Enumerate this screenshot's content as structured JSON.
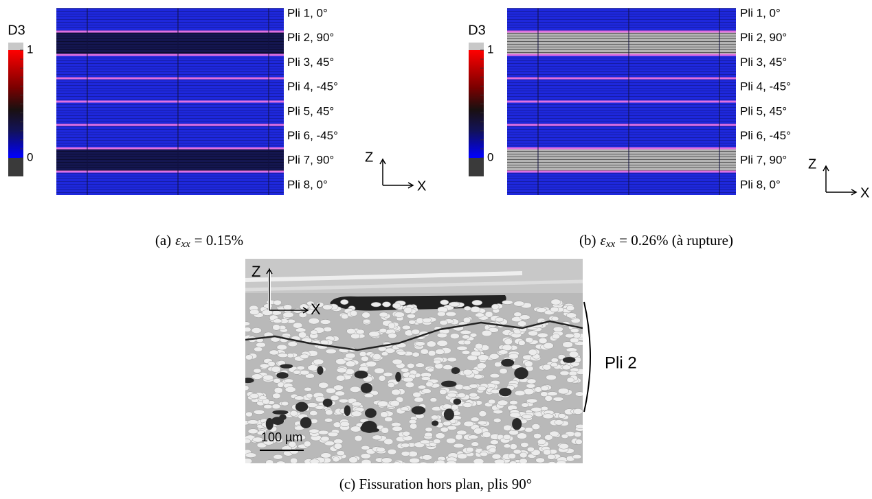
{
  "panels": [
    {
      "colorbar": {
        "label": "D3",
        "ticks": [
          "1",
          "0"
        ]
      },
      "plies": [
        "Pli 1, 0°",
        "Pli 2, 90°",
        "Pli 3, 45°",
        "Pli 4, -45°",
        "Pli 5, 45°",
        "Pli 6, -45°",
        "Pli 7, 90°",
        "Pli 8, 0°"
      ],
      "axes": {
        "z": "Z",
        "x": "X"
      },
      "caption": {
        "label": "(a)",
        "symbol": "ε",
        "subscript": "xx",
        "text": "= 0.15%"
      }
    },
    {
      "colorbar": {
        "label": "D3",
        "ticks": [
          "1",
          "0"
        ]
      },
      "plies": [
        "Pli 1, 0°",
        "Pli 2, 90°",
        "Pli 3, 45°",
        "Pli 4, -45°",
        "Pli 5, 45°",
        "Pli 6, -45°",
        "Pli 7, 90°",
        "Pli 8, 0°"
      ],
      "axes": {
        "z": "Z",
        "x": "X"
      },
      "caption": {
        "label": "(b)",
        "symbol": "ε",
        "subscript": "xx",
        "text": "= 0.26% (à rupture)"
      }
    }
  ],
  "micrograph": {
    "axes": {
      "z": "Z",
      "x": "X"
    },
    "ply_label": "Pli 2",
    "scale_bar": "100 µm",
    "caption": "(c) Fissuration hors plan, plis 90°"
  }
}
